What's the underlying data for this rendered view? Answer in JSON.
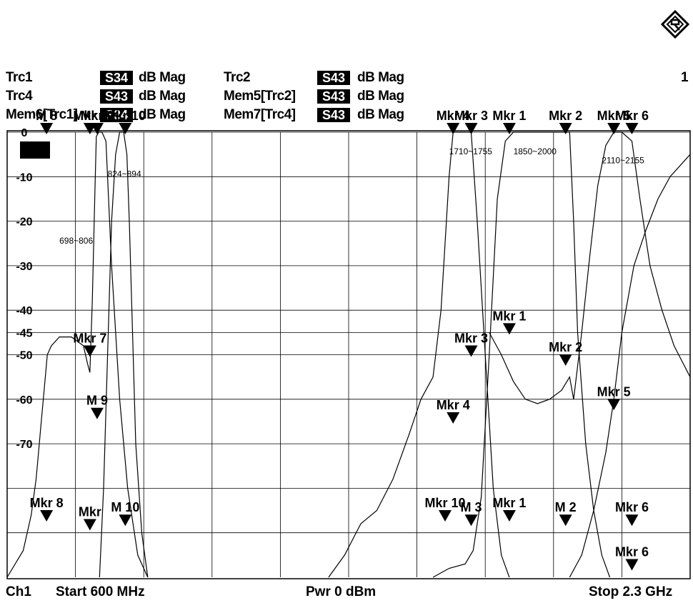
{
  "header": {
    "channel_number": "1",
    "traces": [
      {
        "name": "Trc1",
        "param": "S34",
        "format": "dB Mag"
      },
      {
        "name": "Trc2",
        "param": "S43",
        "format": "dB Mag"
      },
      {
        "name": "Trc4",
        "param": "S43",
        "format": "dB Mag"
      },
      {
        "name": "Mem5[Trc2]",
        "param": "S43",
        "format": "dB Mag"
      },
      {
        "name": "Mem6[Trc1]",
        "param": "S34",
        "format": "dB Mag"
      },
      {
        "name": "Mem7[Trc4]",
        "param": "S43",
        "format": "dB Mag"
      }
    ]
  },
  "footer": {
    "channel": "Ch1",
    "start": "Start 600 MHz",
    "power": "Pwr 0 dBm",
    "stop": "Stop 2.3 GHz"
  },
  "chart_data": {
    "type": "line",
    "title": "",
    "xlabel": "",
    "ylabel": "",
    "xlim": [
      600,
      2300
    ],
    "ylim": [
      -100,
      0
    ],
    "x_unit": "MHz",
    "y_unit": "dB",
    "grid": true,
    "y_ticks": [
      0,
      -10,
      -20,
      -30,
      -40,
      -45,
      -50,
      -60,
      -70
    ],
    "y_tick_labels": [
      "0",
      "-10",
      "-20",
      "-30",
      "-40",
      "-45",
      "-50",
      "-60",
      "-70"
    ],
    "trace_color": "#000000",
    "band_labels": [
      {
        "text": "698~806",
        "x": 730,
        "y": -25
      },
      {
        "text": "824~894",
        "x": 850,
        "y": -10
      },
      {
        "text": "1710~1755",
        "x": 1700,
        "y": -5
      },
      {
        "text": "1850~2000",
        "x": 1860,
        "y": -5
      },
      {
        "text": "2110~2155",
        "x": 2080,
        "y": -7
      }
    ],
    "series": [
      {
        "x": [
          600,
          640,
          660,
          672,
          678,
          684,
          690,
          696,
          700,
          710,
          730,
          760,
          790,
          800,
          806,
          812,
          818,
          822,
          828,
          836,
          846,
          860,
          880,
          900,
          925,
          950
        ],
        "y": [
          -100,
          -94,
          -86,
          -78,
          -72,
          -66,
          -60,
          -54,
          -50,
          -48,
          -46,
          -46,
          -48,
          -52,
          -54,
          -38,
          -15,
          -1,
          0,
          0,
          -2,
          -30,
          -60,
          -80,
          -95,
          -100
        ]
      },
      {
        "x": [
          830,
          840,
          850,
          860,
          870,
          880,
          890,
          898,
          904,
          912,
          920,
          935,
          950
        ],
        "y": [
          -100,
          -80,
          -50,
          -20,
          -5,
          0,
          0,
          -5,
          -20,
          -45,
          -70,
          -90,
          -100
        ]
      },
      {
        "x": [
          1400,
          1440,
          1480,
          1520,
          1560,
          1600,
          1630,
          1660,
          1680,
          1700,
          1710,
          1725,
          1740,
          1755,
          1770,
          1790,
          1810,
          1830,
          1850
        ],
        "y": [
          -100,
          -95,
          -88,
          -85,
          -78,
          -68,
          -60,
          -55,
          -40,
          -10,
          0,
          0,
          0,
          0,
          -20,
          -50,
          -80,
          -95,
          -100
        ]
      },
      {
        "x": [
          1660,
          1700,
          1740,
          1760,
          1780,
          1800,
          1820,
          1840,
          1860,
          1880,
          1900,
          1930,
          1960,
          1990,
          2000,
          2010,
          2020,
          2040,
          2060,
          2080,
          2100
        ],
        "y": [
          -100,
          -98,
          -97,
          -94,
          -82,
          -50,
          -15,
          -2,
          0,
          0,
          0,
          0,
          0,
          0,
          0,
          -20,
          -45,
          -70,
          -85,
          -95,
          -100
        ]
      },
      {
        "x": [
          1800,
          1830,
          1860,
          1890,
          1920,
          1950,
          1980,
          2000,
          2010,
          2030,
          2050,
          2070,
          2090,
          2110,
          2130,
          2155,
          2175,
          2200,
          2230,
          2260,
          2300
        ],
        "y": [
          -45,
          -50,
          -56,
          -60,
          -61,
          -60,
          -58,
          -55,
          -60,
          -45,
          -28,
          -12,
          -3,
          0,
          0,
          -2,
          -15,
          -30,
          -40,
          -48,
          -55
        ]
      },
      {
        "x": [
          2000,
          2030,
          2060,
          2090,
          2110,
          2130,
          2160,
          2190,
          2220,
          2250,
          2300
        ],
        "y": [
          -100,
          -95,
          -85,
          -72,
          -60,
          -45,
          -30,
          -22,
          -15,
          -10,
          -5
        ]
      }
    ],
    "markers": [
      {
        "label": "M 8",
        "x": 698,
        "y": 0
      },
      {
        "label": "Mkr 7",
        "x": 806,
        "y": 0
      },
      {
        "label": "Mkr 9",
        "x": 824,
        "y": 0
      },
      {
        "label": "Mkr 10",
        "x": 894,
        "y": 0
      },
      {
        "label": "Mkr 4",
        "x": 1710,
        "y": 0
      },
      {
        "label": "Mkr 3",
        "x": 1755,
        "y": 0
      },
      {
        "label": "Mkr 1",
        "x": 1850,
        "y": 0
      },
      {
        "label": "Mkr 2",
        "x": 1990,
        "y": 0
      },
      {
        "label": "Mkr 5",
        "x": 2110,
        "y": 0
      },
      {
        "label": "Mkr 6",
        "x": 2155,
        "y": 0
      },
      {
        "label": "Mkr 7",
        "x": 806,
        "y": -50
      },
      {
        "label": "M 9",
        "x": 824,
        "y": -64
      },
      {
        "label": "Mkr 1",
        "x": 1850,
        "y": -45
      },
      {
        "label": "Mkr 3",
        "x": 1755,
        "y": -50
      },
      {
        "label": "Mkr 2",
        "x": 1990,
        "y": -52
      },
      {
        "label": "Mkr 4",
        "x": 1710,
        "y": -65
      },
      {
        "label": "Mkr 5",
        "x": 2110,
        "y": -62
      },
      {
        "label": "Mkr 8",
        "x": 698,
        "y": -87
      },
      {
        "label": "Mkr",
        "x": 806,
        "y": -89
      },
      {
        "label": "M 10",
        "x": 894,
        "y": -88
      },
      {
        "label": "Mkr 10",
        "x": 1690,
        "y": -87
      },
      {
        "label": "M 3",
        "x": 1755,
        "y": -88
      },
      {
        "label": "Mkr 1",
        "x": 1850,
        "y": -87
      },
      {
        "label": "M 2",
        "x": 1990,
        "y": -88
      },
      {
        "label": "Mkr 6",
        "x": 2155,
        "y": -88
      },
      {
        "label": "Mkr 6",
        "x": 2155,
        "y": -98
      }
    ]
  }
}
